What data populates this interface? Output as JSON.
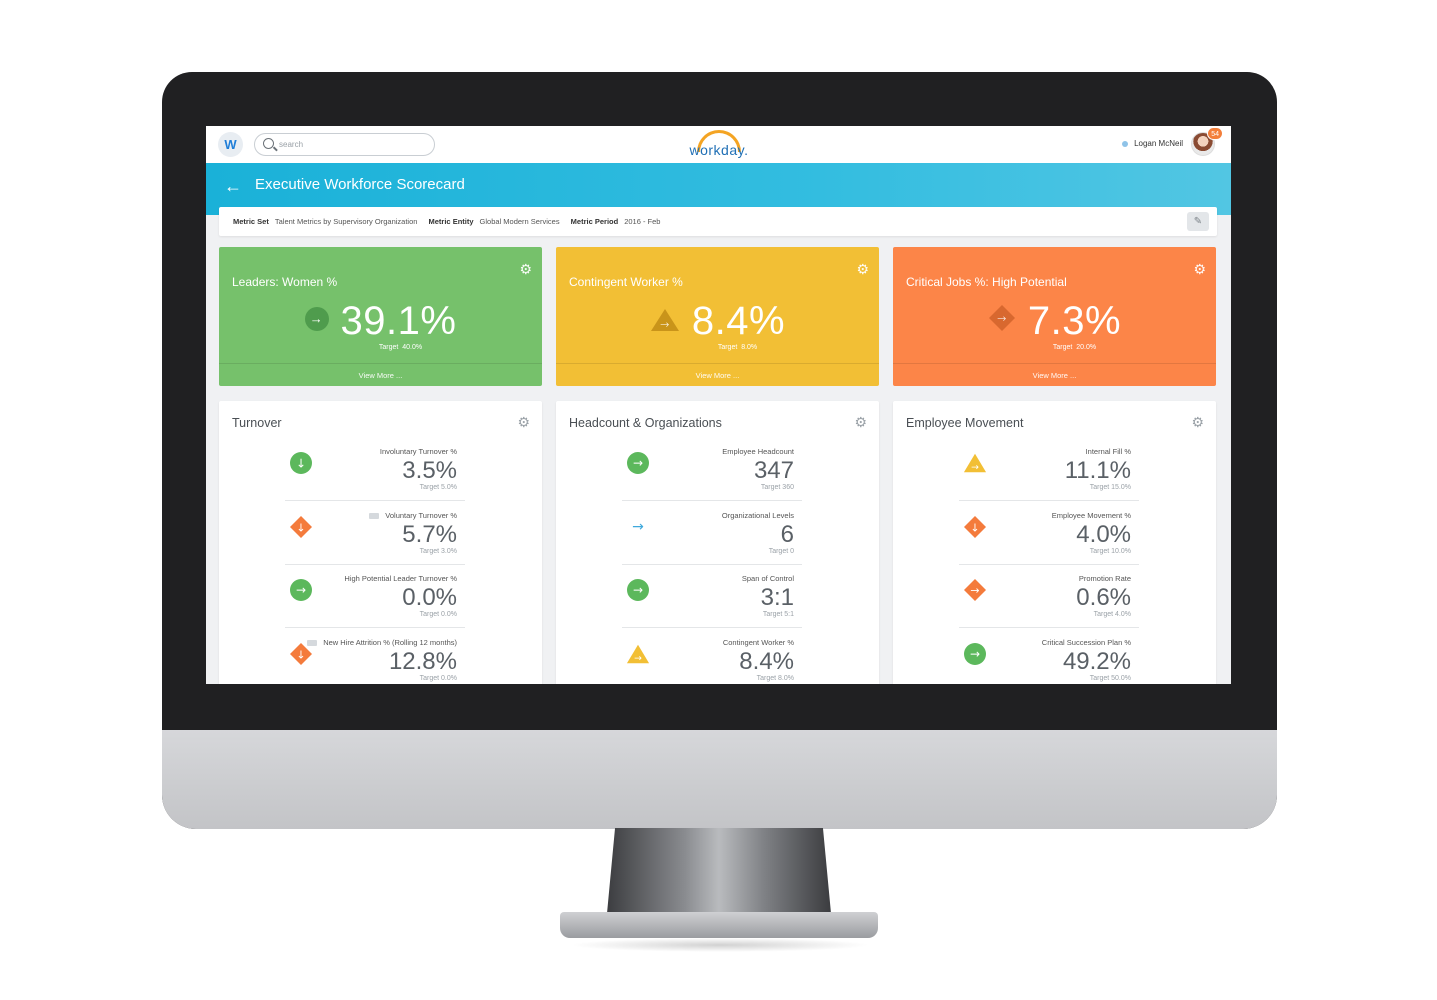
{
  "header": {
    "home_letter": "W",
    "search_placeholder": "search",
    "logo_text": "workday.",
    "user_name": "Logan McNeil",
    "notification_count": "54"
  },
  "page": {
    "title": "Executive Workforce Scorecard"
  },
  "filters": {
    "metric_set_label": "Metric Set",
    "metric_set_value": "Talent Metrics by Supervisory Organization",
    "metric_entity_label": "Metric Entity",
    "metric_entity_value": "Global Modern Services",
    "metric_period_label": "Metric Period",
    "metric_period_value": "2016 - Feb"
  },
  "kpis": [
    {
      "title": "Leaders: Women %",
      "value": "39.1%",
      "target_label": "Target",
      "target": "40.0%",
      "more": "View More ...",
      "color": "#76c16b",
      "indicator": "arrow-right"
    },
    {
      "title": "Contingent Worker %",
      "value": "8.4%",
      "target_label": "Target",
      "target": "8.0%",
      "more": "View More ...",
      "color": "#f2bf35",
      "indicator": "warning"
    },
    {
      "title": "Critical Jobs %: High Potential",
      "value": "7.3%",
      "target_label": "Target",
      "target": "20.0%",
      "more": "View More ...",
      "color": "#fc8548",
      "indicator": "diamond"
    }
  ],
  "cards": [
    {
      "title": "Turnover",
      "metrics": [
        {
          "label": "Involuntary Turnover %",
          "value": "3.5%",
          "target": "Target  5.0%",
          "indicator": "green-down",
          "comment": false
        },
        {
          "label": "Voluntary Turnover %",
          "value": "5.7%",
          "target": "Target  3.0%",
          "indicator": "orange-down",
          "comment": true
        },
        {
          "label": "High Potential Leader Turnover %",
          "value": "0.0%",
          "target": "Target  0.0%",
          "indicator": "green-right",
          "comment": false
        },
        {
          "label": "New Hire Attrition % (Rolling 12 months)",
          "value": "12.8%",
          "target": "Target  0.0%",
          "indicator": "orange-down",
          "comment": true
        }
      ]
    },
    {
      "title": "Headcount & Organizations",
      "metrics": [
        {
          "label": "Employee Headcount",
          "value": "347",
          "target": "Target  360",
          "indicator": "green-right",
          "comment": false
        },
        {
          "label": "Organizational Levels",
          "value": "6",
          "target": "Target  0",
          "indicator": "blue-right",
          "comment": false
        },
        {
          "label": "Span of Control",
          "value": "3:1",
          "target": "Target  5:1",
          "indicator": "green-right",
          "comment": false
        },
        {
          "label": "Contingent Worker %",
          "value": "8.4%",
          "target": "Target  8.0%",
          "indicator": "yellow-tri",
          "comment": false
        }
      ]
    },
    {
      "title": "Employee Movement",
      "metrics": [
        {
          "label": "Internal Fill %",
          "value": "11.1%",
          "target": "Target  15.0%",
          "indicator": "yellow-tri",
          "comment": false
        },
        {
          "label": "Employee Movement %",
          "value": "4.0%",
          "target": "Target  10.0%",
          "indicator": "orange-down",
          "comment": false
        },
        {
          "label": "Promotion Rate",
          "value": "0.6%",
          "target": "Target  4.0%",
          "indicator": "orange-right",
          "comment": false
        },
        {
          "label": "Critical Succession Plan %",
          "value": "49.2%",
          "target": "Target  50.0%",
          "indicator": "green-right",
          "comment": false
        }
      ]
    }
  ]
}
